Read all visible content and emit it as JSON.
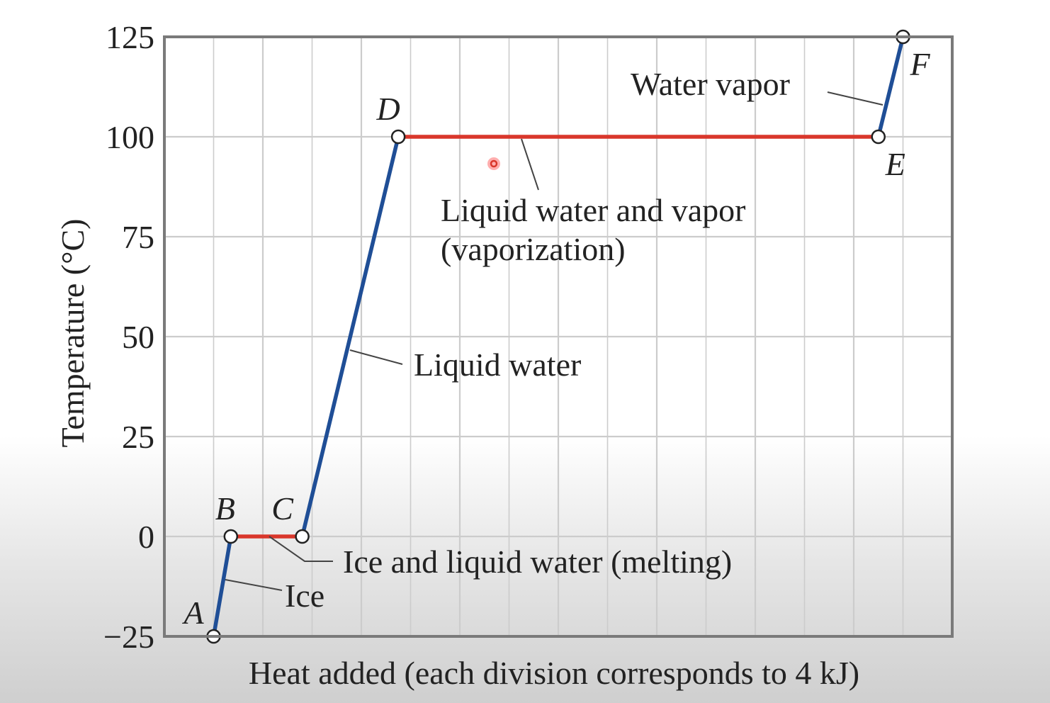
{
  "chart_data": {
    "type": "line",
    "xlabel": "Heat added (each division corresponds to 4 kJ)",
    "ylabel": "Temperature (°C)",
    "xlim": [
      0,
      16
    ],
    "ylim": [
      -25,
      125
    ],
    "yticks": [
      -25,
      0,
      25,
      50,
      75,
      100,
      125
    ],
    "grid": true,
    "colors": {
      "heating": "#1f4e96",
      "phase_change": "#d9372b",
      "grid": "#cccccc",
      "frame": "#7a7a7a"
    },
    "points": [
      {
        "label": "A",
        "x": 1.0,
        "y": -25
      },
      {
        "label": "B",
        "x": 1.35,
        "y": 0
      },
      {
        "label": "C",
        "x": 2.8,
        "y": 0
      },
      {
        "label": "D",
        "x": 4.75,
        "y": 100
      },
      {
        "label": "E",
        "x": 14.5,
        "y": 100
      },
      {
        "label": "F",
        "x": 15.0,
        "y": 125
      }
    ],
    "segments": [
      {
        "from": "A",
        "to": "B",
        "kind": "heating",
        "label": "Ice"
      },
      {
        "from": "B",
        "to": "C",
        "kind": "phase_change",
        "label": "Ice and liquid water (melting)"
      },
      {
        "from": "C",
        "to": "D",
        "kind": "heating",
        "label": "Liquid water"
      },
      {
        "from": "D",
        "to": "E",
        "kind": "phase_change",
        "label": "Liquid water and vapor (vaporization)"
      },
      {
        "from": "E",
        "to": "F",
        "kind": "heating",
        "label": "Water vapor"
      }
    ],
    "annotations": {
      "ice": "Ice",
      "melting": "Ice and liquid water (melting)",
      "liquid": "Liquid water",
      "vaporization_line1": "Liquid water and vapor",
      "vaporization_line2": "(vaporization)",
      "vapor": "Water vapor"
    }
  }
}
